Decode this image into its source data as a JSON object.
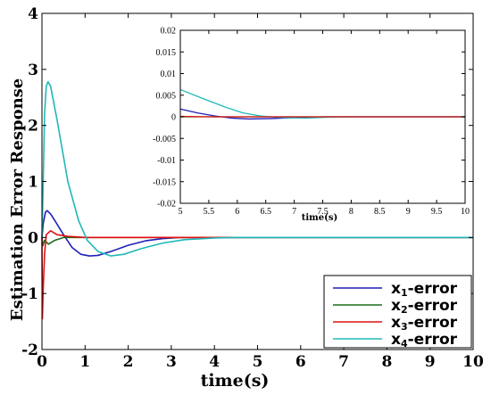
{
  "chart_data": [
    {
      "type": "line",
      "role": "main",
      "xlabel": "time(s)",
      "ylabel": "Estimation Error Response",
      "xlim": [
        0,
        10
      ],
      "ylim": [
        -2,
        4
      ],
      "xticks": [
        0,
        1,
        2,
        3,
        4,
        5,
        6,
        7,
        8,
        9,
        10
      ],
      "yticks": [
        -2,
        -1,
        0,
        1,
        2,
        3,
        4
      ],
      "xtick_labels": [
        "0",
        "1",
        "2",
        "3",
        "4",
        "5",
        "6",
        "7",
        "8",
        "9",
        "10"
      ],
      "ytick_labels": [
        "-2",
        "-1",
        "0",
        "1",
        "2",
        "3",
        "4"
      ],
      "legend_position": "bottom-right",
      "series": [
        {
          "id": "x1",
          "name": "x1-error",
          "name_main": "x",
          "name_sub": "1",
          "name_suffix": "-error",
          "color": "#1f1fb8",
          "points": [
            [
              0,
              0
            ],
            [
              0.03,
              0.25
            ],
            [
              0.08,
              0.45
            ],
            [
              0.12,
              0.48
            ],
            [
              0.2,
              0.42
            ],
            [
              0.3,
              0.3
            ],
            [
              0.5,
              0.05
            ],
            [
              0.7,
              -0.18
            ],
            [
              0.9,
              -0.3
            ],
            [
              1.1,
              -0.33
            ],
            [
              1.3,
              -0.32
            ],
            [
              1.6,
              -0.25
            ],
            [
              2.0,
              -0.14
            ],
            [
              2.4,
              -0.06
            ],
            [
              2.8,
              -0.02
            ],
            [
              3.2,
              0
            ],
            [
              3.5,
              0
            ],
            [
              10,
              0
            ]
          ]
        },
        {
          "id": "x2",
          "name": "x2-error",
          "name_main": "x",
          "name_sub": "2",
          "name_suffix": "-error",
          "color": "#1a6b1a",
          "points": [
            [
              0,
              0
            ],
            [
              0.02,
              -0.15
            ],
            [
              0.06,
              -0.05
            ],
            [
              0.15,
              -0.12
            ],
            [
              0.3,
              -0.05
            ],
            [
              0.5,
              0
            ],
            [
              3.5,
              0
            ],
            [
              10,
              0
            ]
          ]
        },
        {
          "id": "x3",
          "name": "x3-error",
          "name_main": "x",
          "name_sub": "3",
          "name_suffix": "-error",
          "color": "#e01010",
          "points": [
            [
              0,
              0
            ],
            [
              0.01,
              -1.45
            ],
            [
              0.03,
              -0.9
            ],
            [
              0.06,
              -0.3
            ],
            [
              0.1,
              0.05
            ],
            [
              0.2,
              0.12
            ],
            [
              0.35,
              0.05
            ],
            [
              0.6,
              0.02
            ],
            [
              1.0,
              0
            ],
            [
              3.5,
              0
            ],
            [
              10,
              0
            ]
          ]
        },
        {
          "id": "x4",
          "name": "x4-error",
          "name_main": "x",
          "name_sub": "4",
          "name_suffix": "-error",
          "color": "#20b8b8",
          "points": [
            [
              0,
              0
            ],
            [
              0.03,
              1.0
            ],
            [
              0.06,
              2.2
            ],
            [
              0.1,
              2.7
            ],
            [
              0.14,
              2.78
            ],
            [
              0.2,
              2.7
            ],
            [
              0.35,
              2.1
            ],
            [
              0.6,
              1.0
            ],
            [
              0.85,
              0.3
            ],
            [
              1.05,
              -0.05
            ],
            [
              1.3,
              -0.25
            ],
            [
              1.6,
              -0.33
            ],
            [
              1.9,
              -0.3
            ],
            [
              2.3,
              -0.2
            ],
            [
              2.8,
              -0.1
            ],
            [
              3.3,
              -0.04
            ],
            [
              4.0,
              -0.01
            ],
            [
              4.5,
              0
            ],
            [
              10,
              0
            ]
          ]
        }
      ]
    },
    {
      "type": "line",
      "role": "inset",
      "xlabel": "time(s)",
      "ylabel": "",
      "xlim": [
        5,
        10
      ],
      "ylim": [
        -0.02,
        0.02
      ],
      "xticks": [
        5,
        5.5,
        6,
        6.5,
        7,
        7.5,
        8,
        8.5,
        9,
        9.5,
        10
      ],
      "yticks": [
        -0.02,
        -0.015,
        -0.01,
        -0.005,
        0,
        0.005,
        0.01,
        0.015,
        0.02
      ],
      "xtick_labels": [
        "5",
        "5.5",
        "6",
        "6.5",
        "7",
        "7.5",
        "8",
        "8.5",
        "9",
        "9.5",
        "10"
      ],
      "ytick_labels": [
        "-0.02",
        "-0.015",
        "-0.01",
        "-0.005",
        "0",
        "0.005",
        "0.01",
        "0.015",
        "0.02"
      ],
      "series": [
        {
          "id": "x1",
          "color": "#1f1fb8",
          "points": [
            [
              5,
              0.0018
            ],
            [
              5.3,
              0.0009
            ],
            [
              5.6,
              0.0002
            ],
            [
              5.9,
              -0.0003
            ],
            [
              6.2,
              -0.0005
            ],
            [
              6.6,
              -0.0004
            ],
            [
              7.0,
              -0.0002
            ],
            [
              7.5,
              0
            ],
            [
              10,
              0
            ]
          ]
        },
        {
          "id": "x2",
          "color": "#1a6b1a",
          "points": [
            [
              5,
              0
            ],
            [
              10,
              0
            ]
          ]
        },
        {
          "id": "x4",
          "color": "#20b8b8",
          "points": [
            [
              5,
              0.0063
            ],
            [
              5.4,
              0.0042
            ],
            [
              5.8,
              0.0022
            ],
            [
              6.1,
              0.0009
            ],
            [
              6.4,
              0.0002
            ],
            [
              6.8,
              -0.0002
            ],
            [
              7.2,
              -0.0003
            ],
            [
              7.6,
              -0.0001
            ],
            [
              8.0,
              0
            ],
            [
              10,
              0
            ]
          ]
        },
        {
          "id": "x3",
          "color": "#e01010",
          "points": [
            [
              5,
              0.0001
            ],
            [
              5.5,
              0
            ],
            [
              10,
              0
            ]
          ]
        }
      ]
    }
  ]
}
